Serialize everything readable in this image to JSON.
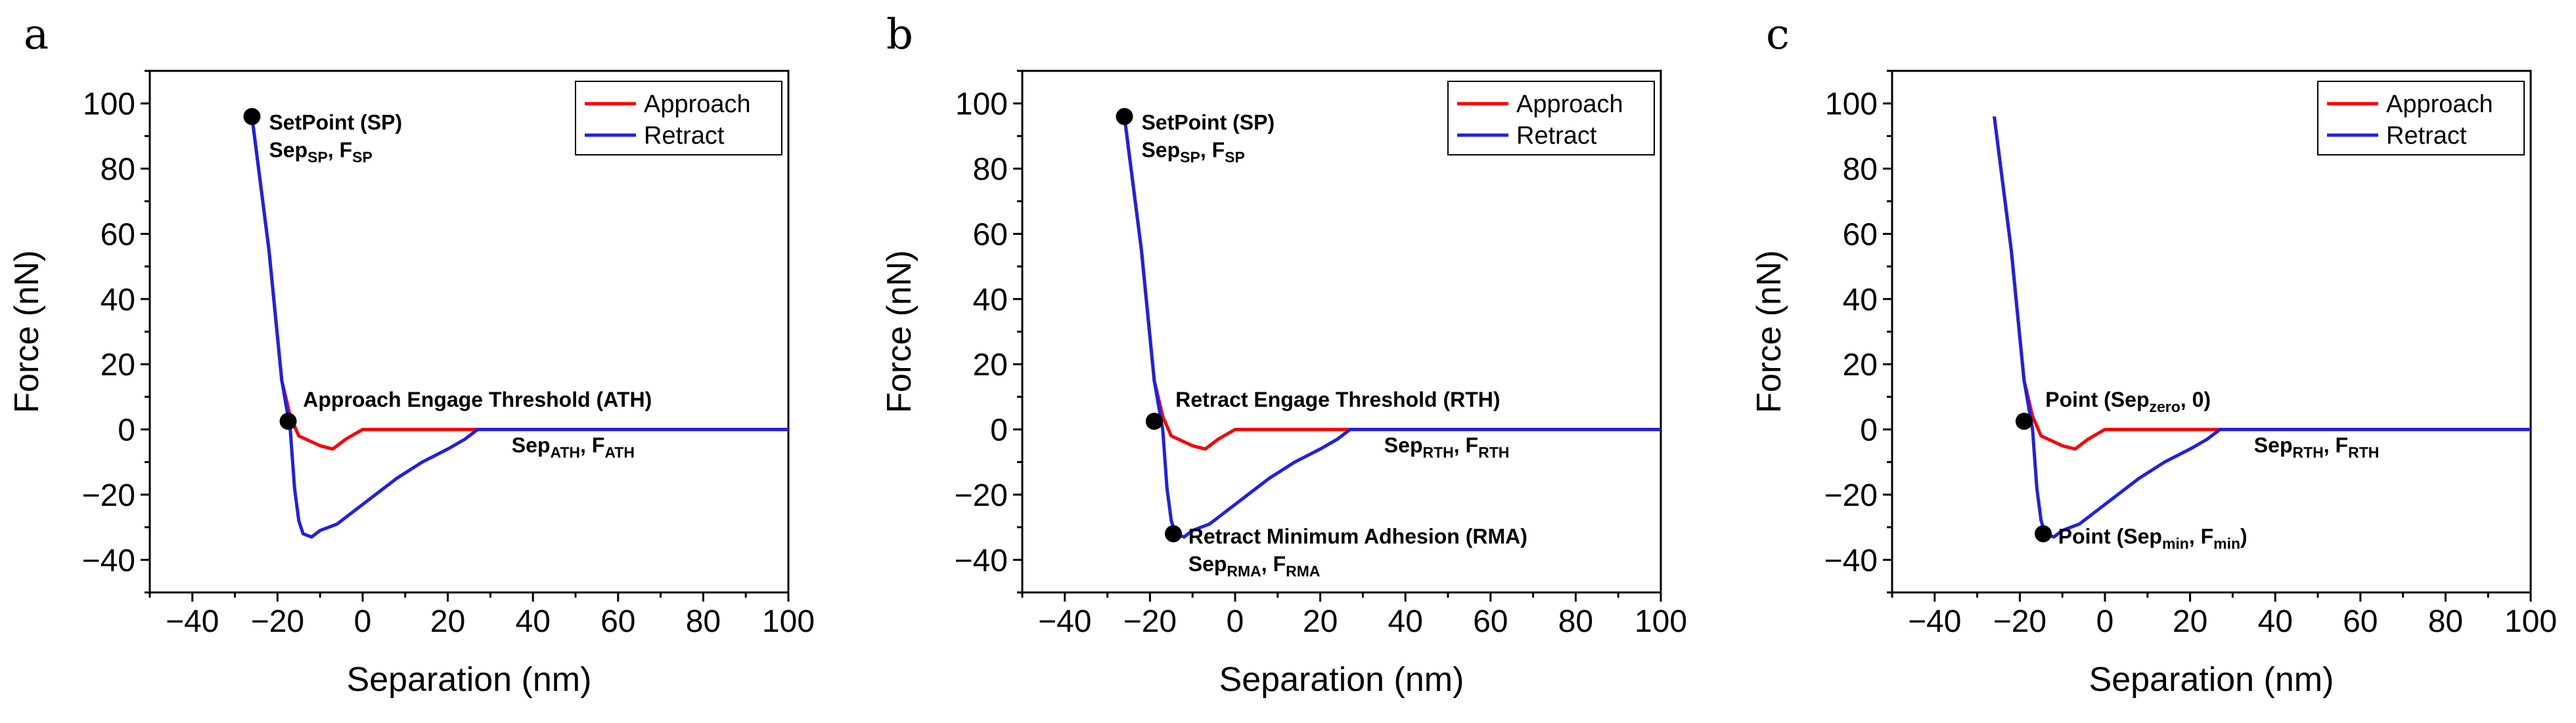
{
  "chart_data": [
    {
      "type": "line",
      "panel": "a",
      "xlabel": "Separation (nm)",
      "ylabel": "Force (nN)",
      "xlim": [
        -50,
        100
      ],
      "ylim": [
        -50,
        110
      ],
      "xticks": [
        -40,
        -20,
        0,
        20,
        40,
        60,
        80,
        100
      ],
      "yticks": [
        -40,
        -20,
        0,
        20,
        40,
        60,
        80,
        100
      ],
      "grid": false,
      "legend": {
        "placement": "top-right",
        "entries": [
          "Approach",
          "Retract"
        ]
      },
      "series": [
        {
          "name": "Approach",
          "color": "#ff0000",
          "x": [
            -26,
            -22,
            -19,
            -17,
            -15,
            -10,
            -7,
            -4,
            0,
            20,
            50,
            100
          ],
          "y": [
            96,
            55,
            15,
            4,
            -2,
            -5,
            -6,
            -3,
            0,
            0,
            0,
            0
          ]
        },
        {
          "name": "Retract",
          "color": "#1f1fe6",
          "x": [
            -26,
            -22,
            -19,
            -17,
            -16,
            -15,
            -14,
            -12,
            -10,
            -6,
            -2,
            2,
            8,
            14,
            20,
            24,
            27,
            35,
            50,
            100
          ],
          "y": [
            96,
            55,
            15,
            0,
            -18,
            -28,
            -32,
            -33,
            -31,
            -29,
            -25,
            -21,
            -15,
            -10,
            -6,
            -3,
            0,
            0,
            0,
            0
          ]
        }
      ],
      "markers": [
        {
          "x": -26,
          "y": 96
        },
        {
          "x": -17.5,
          "y": 2.5
        }
      ],
      "annotations": [
        {
          "x": -22,
          "y": 92,
          "lines": [
            [
              {
                "t": "SetPoint (SP)"
              }
            ],
            [
              {
                "t": "Sep"
              },
              {
                "t": "SP",
                "sub": true
              },
              {
                "t": ", F"
              },
              {
                "t": "SP",
                "sub": true
              }
            ]
          ]
        },
        {
          "x": -14,
          "y": 7,
          "lines": [
            [
              {
                "t": "Approach Engage Threshold (ATH)"
              }
            ]
          ]
        },
        {
          "x": 35,
          "y": -7,
          "lines": [
            [
              {
                "t": "Sep"
              },
              {
                "t": "ATH",
                "sub": true
              },
              {
                "t": ", F"
              },
              {
                "t": "ATH",
                "sub": true
              }
            ]
          ]
        }
      ]
    },
    {
      "type": "line",
      "panel": "b",
      "xlabel": "Separation (nm)",
      "ylabel": "Force (nN)",
      "xlim": [
        -50,
        100
      ],
      "ylim": [
        -50,
        110
      ],
      "xticks": [
        -40,
        -20,
        0,
        20,
        40,
        60,
        80,
        100
      ],
      "yticks": [
        -40,
        -20,
        0,
        20,
        40,
        60,
        80,
        100
      ],
      "grid": false,
      "legend": {
        "placement": "top-right",
        "entries": [
          "Approach",
          "Retract"
        ]
      },
      "series": [
        {
          "name": "Approach",
          "color": "#ff0000",
          "x": [
            -26,
            -22,
            -19,
            -17,
            -15,
            -10,
            -7,
            -4,
            0,
            20,
            50,
            100
          ],
          "y": [
            96,
            55,
            15,
            4,
            -2,
            -5,
            -6,
            -3,
            0,
            0,
            0,
            0
          ]
        },
        {
          "name": "Retract",
          "color": "#1f1fe6",
          "x": [
            -26,
            -22,
            -19,
            -17,
            -16,
            -15,
            -14,
            -12,
            -10,
            -6,
            -2,
            2,
            8,
            14,
            20,
            24,
            27,
            35,
            50,
            100
          ],
          "y": [
            96,
            55,
            15,
            0,
            -18,
            -28,
            -32,
            -33,
            -31,
            -29,
            -25,
            -21,
            -15,
            -10,
            -6,
            -3,
            0,
            0,
            0,
            0
          ]
        }
      ],
      "markers": [
        {
          "x": -26,
          "y": 96
        },
        {
          "x": -19,
          "y": 2.5
        },
        {
          "x": -14.5,
          "y": -32
        }
      ],
      "annotations": [
        {
          "x": -22,
          "y": 92,
          "lines": [
            [
              {
                "t": "SetPoint (SP)"
              }
            ],
            [
              {
                "t": "Sep"
              },
              {
                "t": "SP",
                "sub": true
              },
              {
                "t": ", F"
              },
              {
                "t": "SP",
                "sub": true
              }
            ]
          ]
        },
        {
          "x": -14,
          "y": 7,
          "lines": [
            [
              {
                "t": "Retract Engage Threshold (RTH)"
              }
            ]
          ]
        },
        {
          "x": 35,
          "y": -7,
          "lines": [
            [
              {
                "t": "Sep"
              },
              {
                "t": "RTH",
                "sub": true
              },
              {
                "t": ", F"
              },
              {
                "t": "RTH",
                "sub": true
              }
            ]
          ]
        },
        {
          "x": -11,
          "y": -35,
          "lines": [
            [
              {
                "t": "Retract Minimum Adhesion (RMA)"
              }
            ],
            [
              {
                "t": "Sep"
              },
              {
                "t": "RMA",
                "sub": true
              },
              {
                "t": ", F"
              },
              {
                "t": "RMA",
                "sub": true
              }
            ]
          ]
        }
      ]
    },
    {
      "type": "line",
      "panel": "c",
      "xlabel": "Separation (nm)",
      "ylabel": "Force (nN)",
      "xlim": [
        -50,
        100
      ],
      "ylim": [
        -50,
        110
      ],
      "xticks": [
        -40,
        -20,
        0,
        20,
        40,
        60,
        80,
        100
      ],
      "yticks": [
        -40,
        -20,
        0,
        20,
        40,
        60,
        80,
        100
      ],
      "grid": false,
      "legend": {
        "placement": "top-right",
        "entries": [
          "Approach",
          "Retract"
        ]
      },
      "series": [
        {
          "name": "Approach",
          "color": "#ff0000",
          "x": [
            -26,
            -22,
            -19,
            -17,
            -15,
            -10,
            -7,
            -4,
            0,
            20,
            50,
            100
          ],
          "y": [
            96,
            55,
            15,
            4,
            -2,
            -5,
            -6,
            -3,
            0,
            0,
            0,
            0
          ]
        },
        {
          "name": "Retract",
          "color": "#1f1fe6",
          "x": [
            -26,
            -22,
            -19,
            -17,
            -16,
            -15,
            -14,
            -12,
            -10,
            -6,
            -2,
            2,
            8,
            14,
            20,
            24,
            27,
            35,
            50,
            100
          ],
          "y": [
            96,
            55,
            15,
            0,
            -18,
            -28,
            -32,
            -33,
            -31,
            -29,
            -25,
            -21,
            -15,
            -10,
            -6,
            -3,
            0,
            0,
            0,
            0
          ]
        }
      ],
      "markers": [
        {
          "x": -19,
          "y": 2.5
        },
        {
          "x": -14.5,
          "y": -32
        }
      ],
      "annotations": [
        {
          "x": -14,
          "y": 7,
          "lines": [
            [
              {
                "t": "Point (Sep"
              },
              {
                "t": "zero",
                "sub": true
              },
              {
                "t": ", 0)"
              }
            ]
          ]
        },
        {
          "x": 35,
          "y": -7,
          "lines": [
            [
              {
                "t": "Sep"
              },
              {
                "t": "RTH",
                "sub": true
              },
              {
                "t": ", F"
              },
              {
                "t": "RTH",
                "sub": true
              }
            ]
          ]
        },
        {
          "x": -11,
          "y": -35,
          "lines": [
            [
              {
                "t": "Point (Sep"
              },
              {
                "t": "min",
                "sub": true
              },
              {
                "t": ", F"
              },
              {
                "t": "min",
                "sub": true
              },
              {
                "t": ")"
              }
            ]
          ]
        }
      ]
    }
  ]
}
